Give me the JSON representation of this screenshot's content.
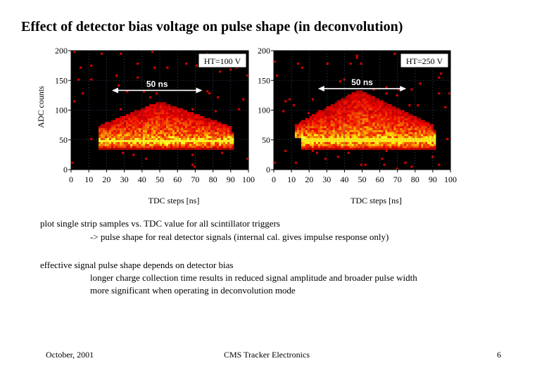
{
  "slide": {
    "title": "Effect of detector bias voltage on pulse shape (in deconvolution)"
  },
  "chart_data": [
    {
      "type": "heatmap",
      "panel": "left",
      "annotation": "HT=100 V",
      "arrow_label": "50 ns",
      "arrow_range": [
        23,
        74
      ],
      "arrow_y": 145,
      "xlabel": "TDC steps [ns]",
      "ylabel": "ADC counts",
      "xlim": [
        0,
        100
      ],
      "ylim": [
        0,
        200
      ],
      "xticks": [
        "0",
        "10",
        "20",
        "30",
        "40",
        "50",
        "60",
        "70",
        "80",
        "90",
        "100"
      ],
      "yticks": [
        "0",
        "50",
        "100",
        "150",
        "200"
      ],
      "band": {
        "x_start": 15,
        "x_end": 92,
        "y_low": 40,
        "y_high": 58
      },
      "cloud": {
        "x_peak": 50,
        "y_peak": 100,
        "x_start": 15,
        "x_end": 90
      }
    },
    {
      "type": "heatmap",
      "panel": "right",
      "annotation": "HT=250 V",
      "arrow_label": "50 ns",
      "arrow_range": [
        25,
        75
      ],
      "arrow_y": 148,
      "xlabel": "TDC steps [ns]",
      "ylabel": "",
      "xlim": [
        0,
        100
      ],
      "ylim": [
        0,
        200
      ],
      "xticks": [
        "0",
        "10",
        "20",
        "30",
        "40",
        "50",
        "60",
        "70",
        "80",
        "90",
        "100"
      ],
      "yticks": [
        "0",
        "50",
        "100",
        "150",
        "200"
      ],
      "band": {
        "x_start": 15,
        "x_end": 92,
        "y_low": 40,
        "y_high": 60
      },
      "cloud": {
        "x_peak": 48,
        "y_peak": 120,
        "x_start": 12,
        "x_end": 90
      }
    }
  ],
  "text": {
    "line1": "plot single strip samples vs. TDC value for all scintillator triggers",
    "line2": "-> pulse shape for real detector signals (internal cal. gives impulse response only)",
    "line3": "effective signal pulse shape depends on detector bias",
    "line4": "longer charge collection time results in reduced signal amplitude and broader pulse width",
    "line5": "more significant when operating in deconvolution mode"
  },
  "footer": {
    "date": "October, 2001",
    "center": "CMS Tracker Electronics",
    "page": "6"
  }
}
